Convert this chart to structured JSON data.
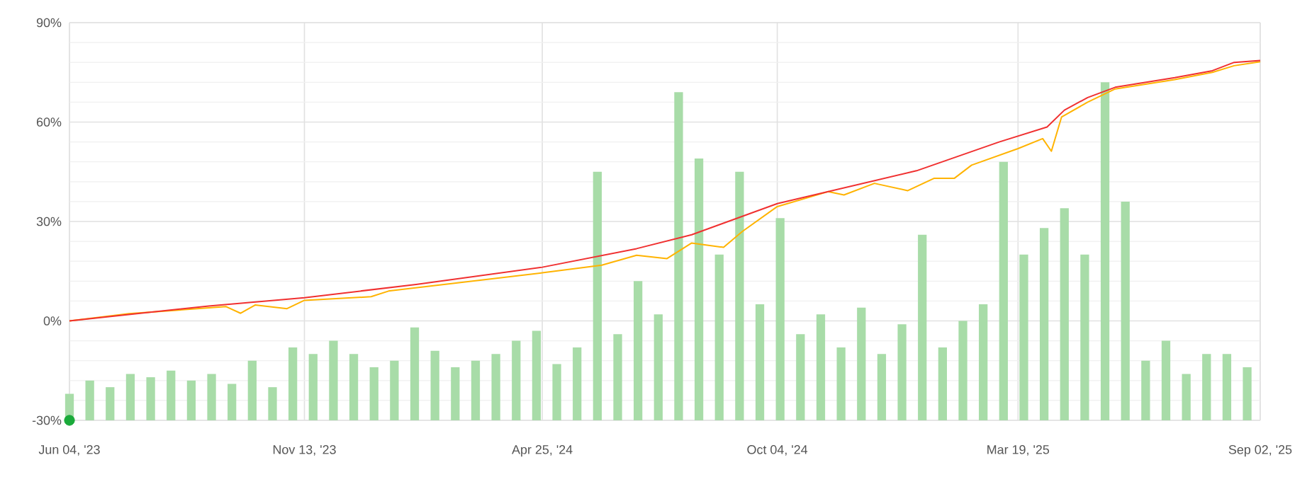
{
  "chart_data": {
    "type": "line",
    "xlim": [
      "2023-06-04",
      "2025-09-02"
    ],
    "xticks": [
      {
        "value": "2023-06-04",
        "label": "Jun 04, '23"
      },
      {
        "value": "2023-11-13",
        "label": "Nov 13, '23"
      },
      {
        "value": "2024-04-25",
        "label": "Apr 25, '24"
      },
      {
        "value": "2024-10-04",
        "label": "Oct 04, '24"
      },
      {
        "value": "2025-03-19",
        "label": "Mar 19, '25"
      },
      {
        "value": "2025-09-02",
        "label": "Sep 02, '25"
      }
    ],
    "ylim": [
      -30,
      90
    ],
    "yticks": [
      {
        "value": -30,
        "label": "-30%"
      },
      {
        "value": 0,
        "label": "0%"
      },
      {
        "value": 30,
        "label": "30%"
      },
      {
        "value": 60,
        "label": "60%"
      },
      {
        "value": 90,
        "label": "90%"
      }
    ],
    "grid": true,
    "series": [
      {
        "type": "bar",
        "color": "#a8dca8",
        "x": [
          "2023-06-04",
          "2023-06-18",
          "2023-07-02",
          "2023-07-16",
          "2023-07-30",
          "2023-08-13",
          "2023-08-27",
          "2023-09-10",
          "2023-09-24",
          "2023-10-08",
          "2023-10-22",
          "2023-11-05",
          "2023-11-19",
          "2023-12-03",
          "2023-12-17",
          "2023-12-31",
          "2024-01-14",
          "2024-01-28",
          "2024-02-11",
          "2024-02-25",
          "2024-03-10",
          "2024-03-24",
          "2024-04-07",
          "2024-04-21",
          "2024-05-05",
          "2024-05-19",
          "2024-06-02",
          "2024-06-16",
          "2024-06-30",
          "2024-07-14",
          "2024-07-28",
          "2024-08-11",
          "2024-08-25",
          "2024-09-08",
          "2024-09-22",
          "2024-10-06",
          "2024-10-20",
          "2024-11-03",
          "2024-11-17",
          "2024-12-01",
          "2024-12-15",
          "2024-12-29",
          "2025-01-12",
          "2025-01-26",
          "2025-02-09",
          "2025-02-23",
          "2025-03-09",
          "2025-03-23",
          "2025-04-06",
          "2025-04-20",
          "2025-05-04",
          "2025-05-18",
          "2025-06-01",
          "2025-06-15",
          "2025-06-29",
          "2025-07-13",
          "2025-07-27",
          "2025-08-10",
          "2025-08-24"
        ],
        "base": [
          -30,
          -30,
          -30,
          -30,
          -30,
          -30,
          -30,
          -30,
          -30,
          -30,
          -30,
          -30,
          -30,
          -30,
          -30,
          -30,
          -30,
          -30,
          -30,
          -30,
          -30,
          -30,
          -30,
          -30,
          -30,
          -30,
          -30,
          -30,
          -30,
          -30,
          -30,
          -30,
          -30,
          -30,
          -30,
          -30,
          -30,
          -30,
          -30,
          -30,
          -30,
          -30,
          -30,
          -30,
          -30,
          -30,
          -30,
          -30,
          -30,
          -30,
          -30,
          -30,
          -30,
          -30,
          -30,
          -30,
          -30,
          -30,
          -30
        ],
        "values": [
          8,
          12,
          10,
          14,
          13,
          15,
          12,
          14,
          11,
          18,
          10,
          22,
          20,
          24,
          20,
          16,
          18,
          28,
          21,
          16,
          18,
          20,
          24,
          27,
          17,
          22,
          75,
          26,
          42,
          32,
          99,
          79,
          50,
          75,
          35,
          61,
          26,
          32,
          22,
          34,
          20,
          29,
          56,
          22,
          30,
          35,
          78,
          50,
          58,
          64,
          50,
          102,
          66,
          18,
          24,
          14,
          20,
          20,
          16
        ]
      },
      {
        "color": "#ffb300",
        "x": [
          "2023-06-04",
          "2023-07-15",
          "2023-09-20",
          "2023-09-30",
          "2023-10-10",
          "2023-11-01",
          "2023-11-13",
          "2023-12-29",
          "2024-01-10",
          "2024-04-25",
          "2024-06-05",
          "2024-06-29",
          "2024-07-20",
          "2024-08-06",
          "2024-08-28",
          "2024-09-10",
          "2024-10-04",
          "2024-11-08",
          "2024-11-19",
          "2024-12-10",
          "2025-01-02",
          "2025-01-20",
          "2025-02-03",
          "2025-02-15",
          "2025-03-19",
          "2025-04-05",
          "2025-04-11",
          "2025-04-18",
          "2025-05-06",
          "2025-05-25",
          "2025-07-05",
          "2025-07-31",
          "2025-08-15",
          "2025-09-02"
        ],
        "values": [
          0,
          2.2,
          4.3,
          2.3,
          4.8,
          3.7,
          6.2,
          7.3,
          9,
          14.5,
          16.8,
          19.8,
          18.8,
          23.5,
          22.2,
          27,
          34.5,
          39,
          38,
          41.5,
          39.3,
          43,
          43,
          47,
          52,
          55,
          51.2,
          61.5,
          66,
          70,
          72.8,
          75,
          77,
          78.2
        ]
      },
      {
        "color": "#f03030",
        "x": [
          "2023-06-04",
          "2023-09-08",
          "2023-11-13",
          "2024-01-29",
          "2024-04-25",
          "2024-06-29",
          "2024-08-06",
          "2024-10-04",
          "2025-01-08",
          "2025-03-06",
          "2025-04-08",
          "2025-04-20",
          "2025-05-06",
          "2025-05-25",
          "2025-07-05",
          "2025-07-31",
          "2025-08-15",
          "2025-09-02"
        ],
        "values": [
          0,
          4.5,
          7,
          11,
          16.2,
          21.8,
          26,
          35.4,
          45.3,
          54,
          58.5,
          63.6,
          67.4,
          70.5,
          73.4,
          75.5,
          78,
          78.6
        ]
      },
      {
        "type": "scatter",
        "color": "#1aaa3a",
        "x": [
          "2023-06-04"
        ],
        "values": [
          -30
        ]
      }
    ]
  }
}
